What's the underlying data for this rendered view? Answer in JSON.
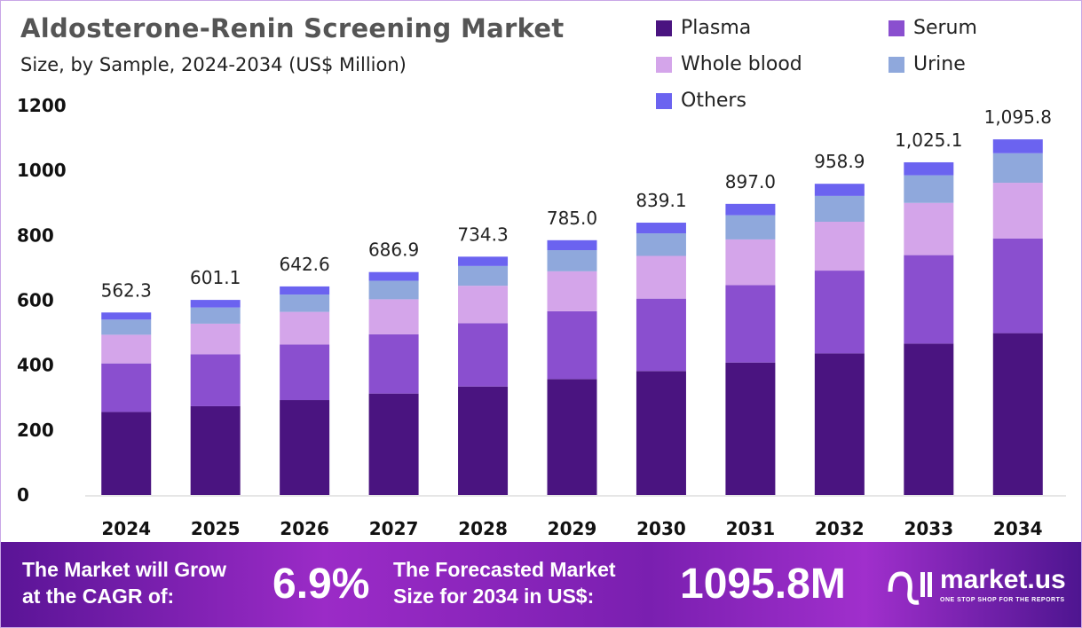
{
  "chart_data": {
    "type": "bar",
    "stacked": true,
    "title": "Aldosterone-Renin Screening Market",
    "subtitle": "Size, by Sample, 2024-2034 (US$ Million)",
    "categories": [
      "2024",
      "2025",
      "2026",
      "2027",
      "2028",
      "2029",
      "2030",
      "2031",
      "2032",
      "2033",
      "2034"
    ],
    "series": [
      {
        "name": "Plasma",
        "color": "#4a1480",
        "values": [
          255.8,
          273.5,
          292.4,
          312.5,
          334.1,
          357.2,
          381.8,
          408.1,
          436.3,
          466.4,
          498.6
        ]
      },
      {
        "name": "Serum",
        "color": "#8a4fcf",
        "values": [
          149.6,
          159.9,
          170.9,
          182.7,
          195.3,
          208.8,
          223.2,
          238.6,
          255.1,
          272.7,
          291.5
        ]
      },
      {
        "name": "Whole blood",
        "color": "#d4a5ea",
        "values": [
          88.3,
          94.4,
          100.9,
          107.8,
          115.3,
          123.2,
          131.7,
          140.8,
          150.5,
          160.9,
          172.0
        ]
      },
      {
        "name": "Urine",
        "color": "#8fa8dc",
        "values": [
          46.7,
          49.9,
          53.3,
          57.0,
          60.9,
          65.2,
          69.6,
          74.5,
          79.6,
          85.1,
          91.0
        ]
      },
      {
        "name": "Others",
        "color": "#6b63f0",
        "values": [
          21.9,
          23.4,
          25.1,
          26.9,
          28.7,
          30.6,
          32.8,
          35.0,
          37.4,
          40.0,
          42.7
        ]
      }
    ],
    "totals": [
      "562.3",
      "601.1",
      "642.6",
      "686.9",
      "734.3",
      "785.0",
      "839.1",
      "897.0",
      "958.9",
      "1,025.1",
      "1,095.8"
    ],
    "yticks": [
      "0",
      "200",
      "400",
      "600",
      "800",
      "1000",
      "1200"
    ],
    "ylim": [
      0,
      1200
    ],
    "grid": false,
    "legend_position": "top-right"
  },
  "footer": {
    "cagr_text_1": "The Market will Grow",
    "cagr_text_2": "at the CAGR of:",
    "cagr_value": "6.9%",
    "forecast_text_1": "The Forecasted Market",
    "forecast_text_2": "Size for 2034 in US$:",
    "forecast_value": "1095.8M",
    "logo_name": "market.us",
    "logo_tagline": "ONE STOP SHOP FOR THE REPORTS"
  }
}
